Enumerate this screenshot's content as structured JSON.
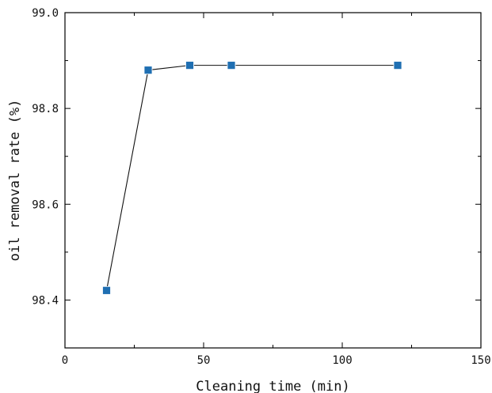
{
  "chart_data": {
    "type": "line",
    "title": "",
    "xlabel": "Cleaning time (min)",
    "ylabel": "oil removal rate (%)",
    "xlim": [
      0,
      150
    ],
    "ylim": [
      98.3,
      99.0
    ],
    "x_ticks": [
      0,
      50,
      100,
      150
    ],
    "x_tick_labels": [
      "0",
      "50",
      "100",
      "150"
    ],
    "y_ticks": [
      98.4,
      98.6,
      98.8,
      99.0
    ],
    "y_tick_labels": [
      "98.4",
      "98.6",
      "98.8",
      "99.0"
    ],
    "grid": false,
    "legend": "none",
    "series": [
      {
        "x": [
          15,
          30,
          45,
          60,
          120
        ],
        "y": [
          98.42,
          98.88,
          98.89,
          98.89,
          98.89
        ],
        "line_color": "#1a1a1a",
        "marker": "square",
        "marker_color": "#1f6fb2"
      }
    ]
  }
}
